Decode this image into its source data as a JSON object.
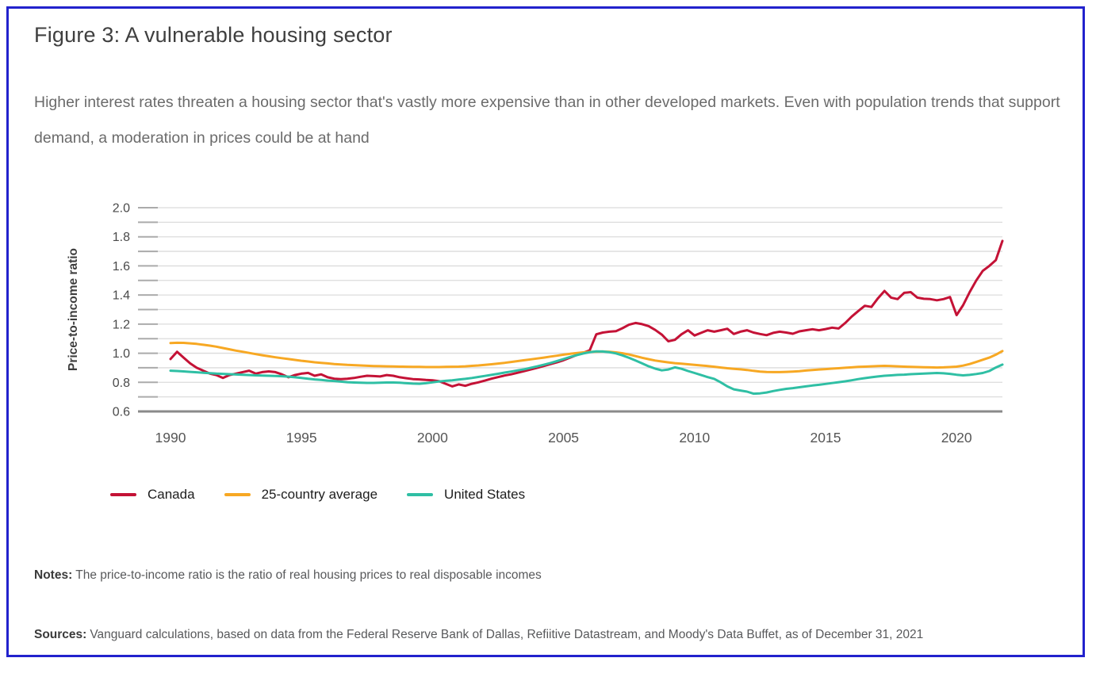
{
  "figure": {
    "title": "Figure 3: A vulnerable housing sector",
    "subtitle": "Higher interest rates threaten a housing sector that's vastly more expensive than in other developed markets. Even with population trends that support demand, a moderation in prices could be at hand",
    "notes_label": "Notes:",
    "notes_text": "The price-to-income ratio is the ratio of real housing prices to real disposable incomes",
    "sources_label": "Sources:",
    "sources_text": "Vanguard calculations, based on data from the Federal Reserve Bank of Dallas, Refiitive Datastream, and Moody's Data Buffet, as of December 31, 2021",
    "border_color": "#2222cd"
  },
  "chart_data": {
    "type": "line",
    "title": "",
    "xlabel": "",
    "ylabel": "Price-to-income ratio",
    "ylim": [
      0.6,
      2.0
    ],
    "y_major_ticks": [
      "0.6",
      "0.8",
      "1.0",
      "1.2",
      "1.4",
      "1.6",
      "1.8",
      "2.0"
    ],
    "y_gridline_step": 0.1,
    "x_ticks": [
      1990,
      1995,
      2000,
      2005,
      2010,
      2015,
      2020
    ],
    "xlim": [
      1990,
      2021.75
    ],
    "x_start": 1990,
    "x_step": 0.25,
    "grid": "horizontal-only",
    "legend_position": "bottom-left",
    "frequency": "quarterly",
    "series": [
      {
        "name": "Canada",
        "color": "#c41236",
        "values": [
          0.96,
          1.01,
          0.97,
          0.93,
          0.9,
          0.88,
          0.86,
          0.85,
          0.83,
          0.85,
          0.86,
          0.87,
          0.88,
          0.86,
          0.87,
          0.875,
          0.87,
          0.855,
          0.835,
          0.85,
          0.86,
          0.865,
          0.845,
          0.855,
          0.835,
          0.825,
          0.822,
          0.825,
          0.83,
          0.838,
          0.845,
          0.843,
          0.84,
          0.85,
          0.845,
          0.835,
          0.828,
          0.822,
          0.82,
          0.816,
          0.814,
          0.808,
          0.79,
          0.772,
          0.786,
          0.776,
          0.79,
          0.8,
          0.812,
          0.825,
          0.836,
          0.847,
          0.855,
          0.866,
          0.877,
          0.888,
          0.9,
          0.912,
          0.925,
          0.937,
          0.952,
          0.97,
          0.988,
          1.003,
          1.02,
          1.13,
          1.142,
          1.148,
          1.152,
          1.172,
          1.196,
          1.208,
          1.2,
          1.186,
          1.16,
          1.128,
          1.082,
          1.092,
          1.13,
          1.158,
          1.122,
          1.14,
          1.158,
          1.148,
          1.158,
          1.168,
          1.132,
          1.148,
          1.158,
          1.142,
          1.132,
          1.124,
          1.14,
          1.148,
          1.142,
          1.134,
          1.15,
          1.158,
          1.165,
          1.158,
          1.166,
          1.176,
          1.17,
          1.208,
          1.252,
          1.29,
          1.326,
          1.318,
          1.378,
          1.428,
          1.382,
          1.372,
          1.415,
          1.42,
          1.382,
          1.374,
          1.372,
          1.364,
          1.372,
          1.386,
          1.262,
          1.33,
          1.42,
          1.5,
          1.566,
          1.6,
          1.64,
          1.772
        ]
      },
      {
        "name": "25-country average",
        "color": "#f7a823",
        "values": [
          1.07,
          1.072,
          1.071,
          1.068,
          1.064,
          1.058,
          1.052,
          1.045,
          1.036,
          1.027,
          1.018,
          1.01,
          1.002,
          0.994,
          0.986,
          0.979,
          0.972,
          0.966,
          0.96,
          0.954,
          0.948,
          0.943,
          0.938,
          0.934,
          0.93,
          0.926,
          0.923,
          0.92,
          0.918,
          0.916,
          0.914,
          0.912,
          0.911,
          0.91,
          0.909,
          0.908,
          0.907,
          0.906,
          0.906,
          0.905,
          0.905,
          0.905,
          0.906,
          0.907,
          0.908,
          0.91,
          0.913,
          0.916,
          0.92,
          0.924,
          0.929,
          0.934,
          0.94,
          0.946,
          0.952,
          0.958,
          0.964,
          0.97,
          0.977,
          0.983,
          0.99,
          0.996,
          1.001,
          1.006,
          1.009,
          1.011,
          1.012,
          1.01,
          1.006,
          1.0,
          0.991,
          0.98,
          0.969,
          0.959,
          0.95,
          0.943,
          0.937,
          0.932,
          0.928,
          0.924,
          0.92,
          0.916,
          0.912,
          0.907,
          0.902,
          0.897,
          0.893,
          0.889,
          0.885,
          0.879,
          0.874,
          0.871,
          0.87,
          0.87,
          0.872,
          0.874,
          0.877,
          0.881,
          0.885,
          0.888,
          0.891,
          0.894,
          0.897,
          0.9,
          0.903,
          0.906,
          0.908,
          0.91,
          0.912,
          0.913,
          0.912,
          0.91,
          0.908,
          0.906,
          0.905,
          0.904,
          0.903,
          0.902,
          0.903,
          0.905,
          0.908,
          0.915,
          0.926,
          0.94,
          0.955,
          0.97,
          0.99,
          1.015
        ]
      },
      {
        "name": "United States",
        "color": "#2fbfa4",
        "values": [
          0.88,
          0.878,
          0.875,
          0.872,
          0.869,
          0.866,
          0.863,
          0.86,
          0.858,
          0.856,
          0.854,
          0.852,
          0.85,
          0.848,
          0.846,
          0.845,
          0.844,
          0.842,
          0.839,
          0.835,
          0.83,
          0.825,
          0.82,
          0.816,
          0.812,
          0.809,
          0.805,
          0.801,
          0.799,
          0.797,
          0.796,
          0.796,
          0.798,
          0.799,
          0.799,
          0.797,
          0.794,
          0.791,
          0.79,
          0.794,
          0.8,
          0.806,
          0.81,
          0.814,
          0.819,
          0.824,
          0.83,
          0.837,
          0.844,
          0.851,
          0.859,
          0.867,
          0.874,
          0.882,
          0.89,
          0.9,
          0.91,
          0.921,
          0.933,
          0.946,
          0.96,
          0.974,
          0.987,
          0.998,
          1.007,
          1.013,
          1.012,
          1.007,
          0.999,
          0.985,
          0.968,
          0.95,
          0.93,
          0.91,
          0.894,
          0.882,
          0.888,
          0.903,
          0.893,
          0.878,
          0.864,
          0.85,
          0.836,
          0.824,
          0.8,
          0.772,
          0.752,
          0.744,
          0.736,
          0.722,
          0.724,
          0.73,
          0.74,
          0.748,
          0.755,
          0.76,
          0.766,
          0.772,
          0.778,
          0.783,
          0.789,
          0.795,
          0.801,
          0.807,
          0.814,
          0.822,
          0.829,
          0.835,
          0.84,
          0.845,
          0.848,
          0.851,
          0.853,
          0.856,
          0.858,
          0.86,
          0.862,
          0.864,
          0.862,
          0.858,
          0.852,
          0.848,
          0.851,
          0.857,
          0.864,
          0.878,
          0.902,
          0.922
        ]
      }
    ]
  }
}
